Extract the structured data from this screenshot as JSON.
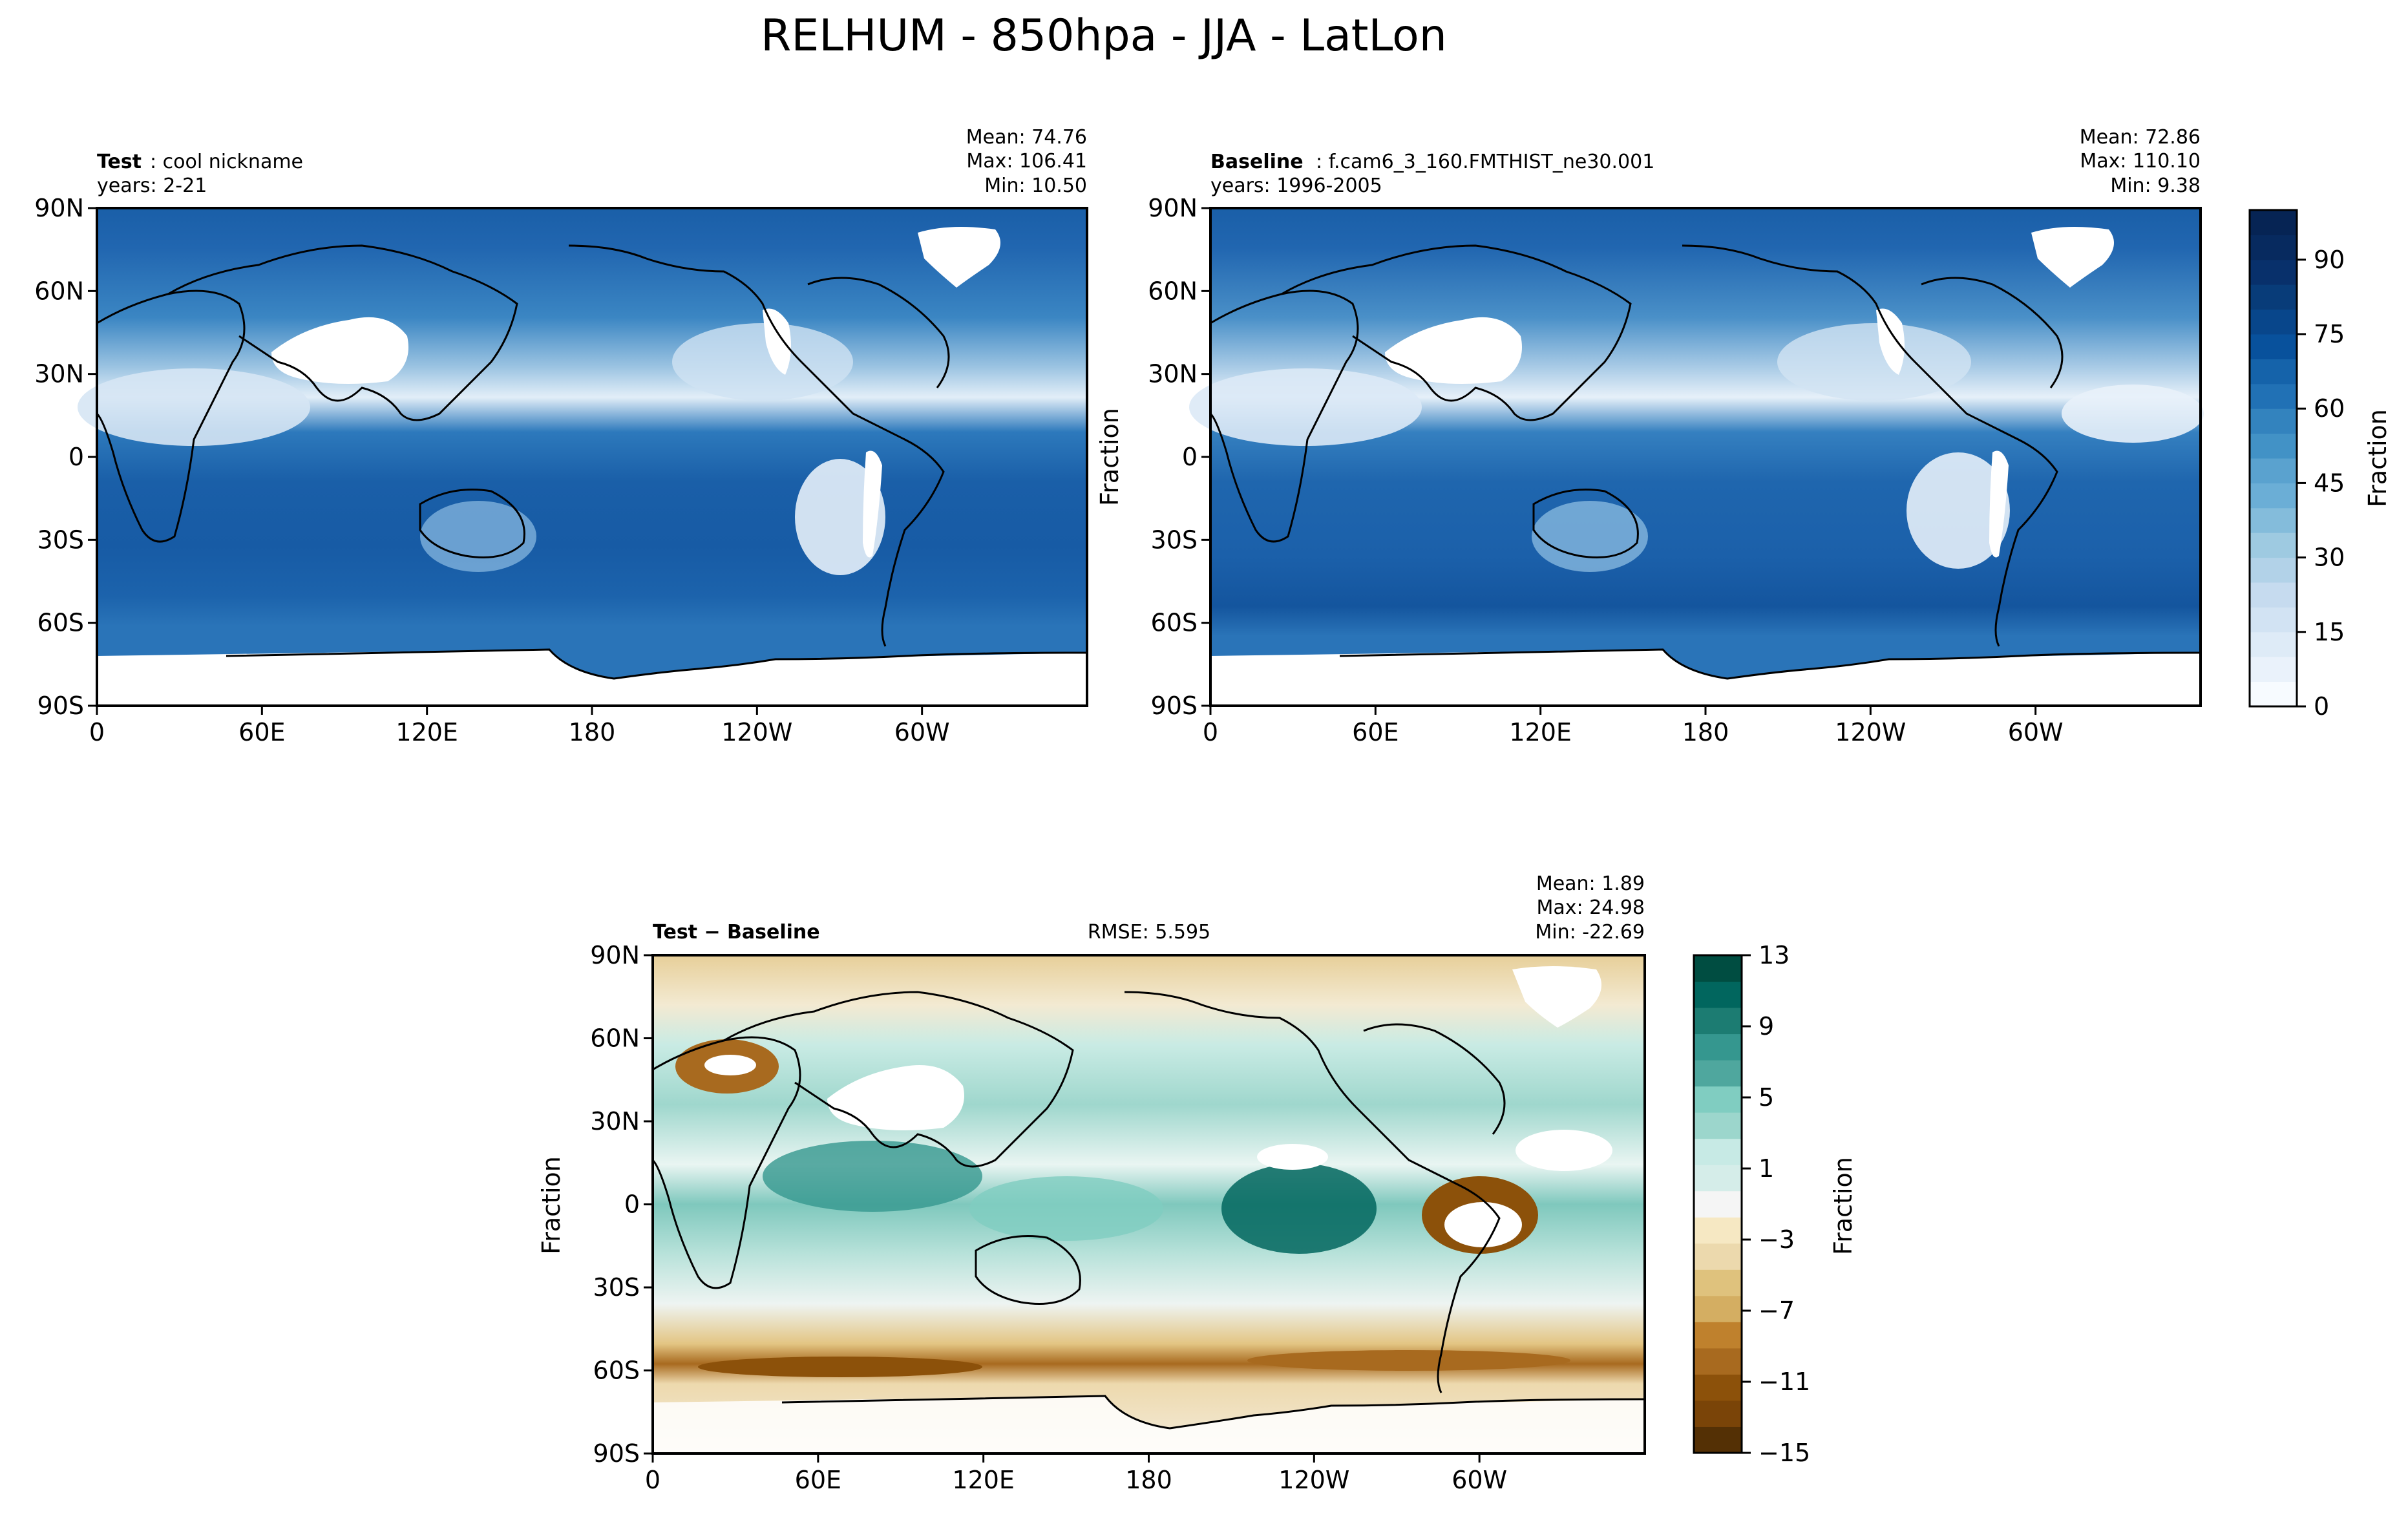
{
  "figure": {
    "suptitle": "RELHUM - 850hpa - JJA - LatLon"
  },
  "chart_data": [
    {
      "type": "heatmap",
      "panel": "test",
      "title_bold": "Test",
      "title_rest": ": cool nickname",
      "years": "years: 2-21",
      "stats": [
        "Mean: 74.76",
        "Max: 106.41",
        "Min: 10.50"
      ],
      "ylabel": "",
      "xticks": [
        "0",
        "60E",
        "120E",
        "180",
        "120W",
        "60W"
      ],
      "yticks": [
        "90N",
        "60N",
        "30N",
        "0",
        "30S",
        "60S",
        "90S"
      ],
      "xlim": [
        0,
        360
      ],
      "ylim": [
        -90,
        90
      ]
    },
    {
      "type": "heatmap",
      "panel": "baseline",
      "title_bold": "Baseline",
      "title_rest": ": f.cam6_3_160.FMTHIST_ne30.001",
      "years": "years: 1996-2005",
      "stats": [
        "Mean: 72.86",
        "Max: 110.10",
        "Min:  9.38"
      ],
      "ylabel": "Fraction",
      "xticks": [
        "0",
        "60E",
        "120E",
        "180",
        "120W",
        "60W"
      ],
      "yticks": [
        "90N",
        "60N",
        "30N",
        "0",
        "30S",
        "60S",
        "90S"
      ],
      "xlim": [
        0,
        360
      ],
      "ylim": [
        -90,
        90
      ],
      "colorbar": {
        "label": "Fraction",
        "ticks": [
          "0",
          "15",
          "30",
          "45",
          "60",
          "75",
          "90"
        ],
        "tick_values": [
          0,
          15,
          30,
          45,
          60,
          75,
          90
        ],
        "range": [
          0,
          100
        ],
        "levels": 20,
        "colormap": "Blues",
        "colors": [
          "#f7fbff",
          "#eaf2fb",
          "#deebf7",
          "#d2e3f3",
          "#c6dbef",
          "#b2d2e8",
          "#9ecae1",
          "#84bcdb",
          "#6baed6",
          "#5aa2cf",
          "#4292c6",
          "#3383be",
          "#2171b5",
          "#1563aa",
          "#08519c",
          "#08468b",
          "#083c79",
          "#08306b",
          "#072a5f",
          "#062454"
        ]
      }
    },
    {
      "type": "heatmap",
      "panel": "diff",
      "title_bold": "Test − Baseline",
      "rmse": "RMSE: 5.595",
      "stats": [
        "Mean:  1.89",
        "Max: 24.98",
        "Min: -22.69"
      ],
      "ylabel": "Fraction",
      "xticks": [
        "0",
        "60E",
        "120E",
        "180",
        "120W",
        "60W"
      ],
      "yticks": [
        "90N",
        "60N",
        "30N",
        "0",
        "30S",
        "60S",
        "90S"
      ],
      "xlim": [
        0,
        360
      ],
      "ylim": [
        -90,
        90
      ],
      "colorbar": {
        "label": "Fraction",
        "ticks": [
          "13",
          "9",
          "5",
          "1",
          "−3",
          "−7",
          "−11",
          "−15"
        ],
        "tick_values": [
          13,
          9,
          5,
          1,
          -3,
          -7,
          -11,
          -15
        ],
        "range": [
          -15,
          13
        ],
        "colormap": "BrBG",
        "colors": [
          "#543005",
          "#7a4408",
          "#8c510a",
          "#a86a1f",
          "#bf812d",
          "#d4ae62",
          "#dfc27d",
          "#ecd9ad",
          "#f6e8c3",
          "#f5f5f5",
          "#d5ede9",
          "#c7eae5",
          "#9cd6cc",
          "#80cdc1",
          "#4fa79e",
          "#35978f",
          "#1c7c72",
          "#01665e",
          "#004d41"
        ]
      }
    }
  ]
}
